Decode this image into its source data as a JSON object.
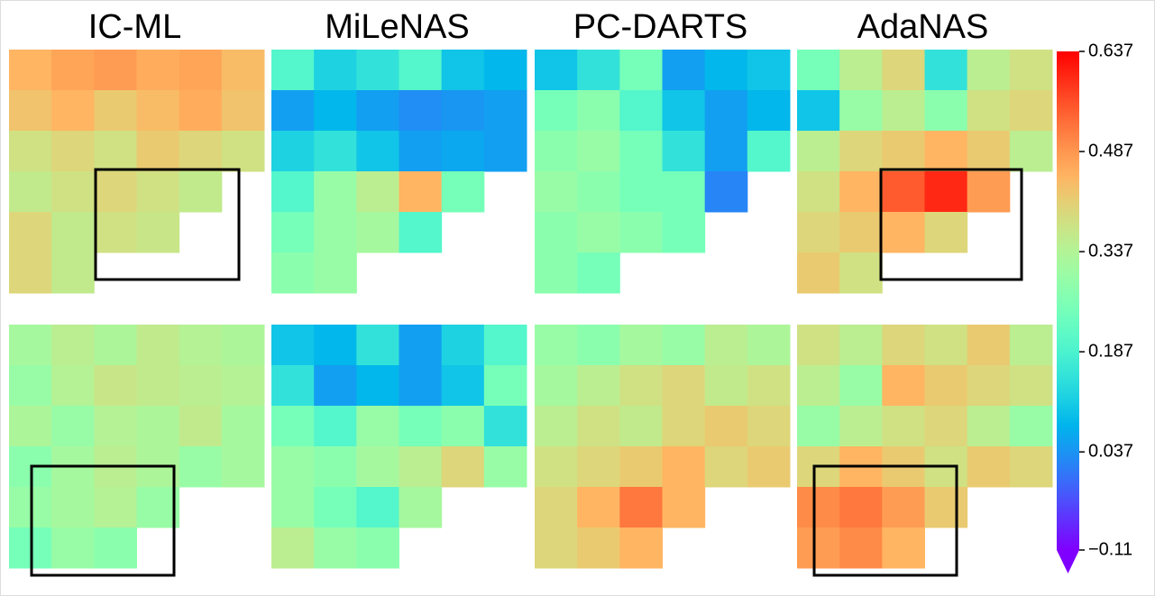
{
  "chart_data": {
    "type": "heatmap",
    "colormap": "rainbow",
    "columns": [
      "IC-ML",
      "MiLeNAS",
      "PC-DARTS",
      "AdaNAS"
    ],
    "clim": [
      -0.11,
      0.637
    ],
    "cticks": [
      {
        "value": -0.11,
        "label": "−0.11"
      },
      0.037,
      0.187,
      0.337,
      0.487,
      0.637
    ],
    "maps": [
      [
        [
          [
            0.45,
            0.47,
            0.48,
            0.46,
            0.47,
            0.44
          ],
          [
            0.43,
            0.45,
            0.42,
            0.44,
            0.46,
            0.43
          ],
          [
            0.38,
            0.4,
            0.38,
            0.42,
            0.4,
            0.38
          ],
          [
            0.36,
            0.38,
            0.4,
            0.38,
            0.36,
            null
          ],
          [
            0.4,
            0.36,
            0.38,
            0.37,
            null,
            null
          ],
          [
            0.4,
            0.36,
            null,
            null,
            null,
            null
          ]
        ],
        [
          [
            0.2,
            0.12,
            0.15,
            0.2,
            0.1,
            0.08
          ],
          [
            0.05,
            0.08,
            0.05,
            0.03,
            0.04,
            0.05
          ],
          [
            0.12,
            0.15,
            0.1,
            0.05,
            0.06,
            0.05
          ],
          [
            0.2,
            0.3,
            0.35,
            0.45,
            0.25,
            null
          ],
          [
            0.25,
            0.3,
            0.32,
            0.2,
            null,
            null
          ],
          [
            0.28,
            0.3,
            null,
            null,
            null,
            null
          ]
        ],
        [
          [
            0.1,
            0.15,
            0.25,
            0.05,
            0.08,
            0.1
          ],
          [
            0.25,
            0.28,
            0.2,
            0.1,
            0.05,
            0.08
          ],
          [
            0.28,
            0.3,
            0.25,
            0.15,
            0.05,
            0.2
          ],
          [
            0.3,
            0.28,
            0.25,
            0.25,
            0.02,
            null
          ],
          [
            0.28,
            0.3,
            0.28,
            0.25,
            null,
            null
          ],
          [
            0.28,
            0.25,
            null,
            null,
            null,
            null
          ]
        ],
        [
          [
            0.25,
            0.35,
            0.4,
            0.15,
            0.35,
            0.38
          ],
          [
            0.1,
            0.3,
            0.35,
            0.28,
            0.38,
            0.4
          ],
          [
            0.35,
            0.4,
            0.42,
            0.45,
            0.42,
            0.35
          ],
          [
            0.38,
            0.45,
            0.55,
            0.6,
            0.48,
            null
          ],
          [
            0.4,
            0.42,
            0.45,
            0.4,
            null,
            null
          ],
          [
            0.42,
            0.38,
            null,
            null,
            null,
            null
          ]
        ]
      ],
      [
        [
          [
            0.32,
            0.35,
            0.33,
            0.36,
            0.34,
            0.33
          ],
          [
            0.3,
            0.34,
            0.37,
            0.36,
            0.35,
            0.34
          ],
          [
            0.33,
            0.3,
            0.34,
            0.33,
            0.36,
            0.32
          ],
          [
            0.28,
            0.32,
            0.35,
            0.33,
            0.3,
            0.32
          ],
          [
            0.3,
            0.32,
            0.34,
            0.3,
            null,
            null
          ],
          [
            0.25,
            0.3,
            0.28,
            null,
            null,
            null
          ]
        ],
        [
          [
            0.1,
            0.08,
            0.15,
            0.05,
            0.12,
            0.2
          ],
          [
            0.15,
            0.05,
            0.08,
            0.05,
            0.1,
            0.25
          ],
          [
            0.25,
            0.2,
            0.3,
            0.25,
            0.28,
            0.15
          ],
          [
            0.3,
            0.28,
            0.32,
            0.35,
            0.4,
            0.3
          ],
          [
            0.3,
            0.25,
            0.2,
            0.32,
            null,
            null
          ],
          [
            0.35,
            0.3,
            0.28,
            null,
            null,
            null
          ]
        ],
        [
          [
            0.3,
            0.28,
            0.32,
            0.3,
            0.35,
            0.33
          ],
          [
            0.32,
            0.35,
            0.38,
            0.4,
            0.36,
            0.38
          ],
          [
            0.35,
            0.38,
            0.36,
            0.4,
            0.42,
            0.4
          ],
          [
            0.38,
            0.4,
            0.42,
            0.45,
            0.4,
            0.42
          ],
          [
            0.4,
            0.45,
            0.52,
            0.45,
            null,
            null
          ],
          [
            0.4,
            0.42,
            0.45,
            null,
            null,
            null
          ]
        ],
        [
          [
            0.38,
            0.35,
            0.4,
            0.38,
            0.42,
            0.35
          ],
          [
            0.35,
            0.3,
            0.45,
            0.42,
            0.4,
            0.38
          ],
          [
            0.3,
            0.35,
            0.38,
            0.4,
            0.35,
            0.3
          ],
          [
            0.4,
            0.45,
            0.42,
            0.38,
            0.42,
            0.4
          ],
          [
            0.5,
            0.52,
            0.48,
            0.42,
            null,
            null
          ],
          [
            0.48,
            0.5,
            0.45,
            null,
            null,
            null
          ]
        ]
      ]
    ]
  }
}
